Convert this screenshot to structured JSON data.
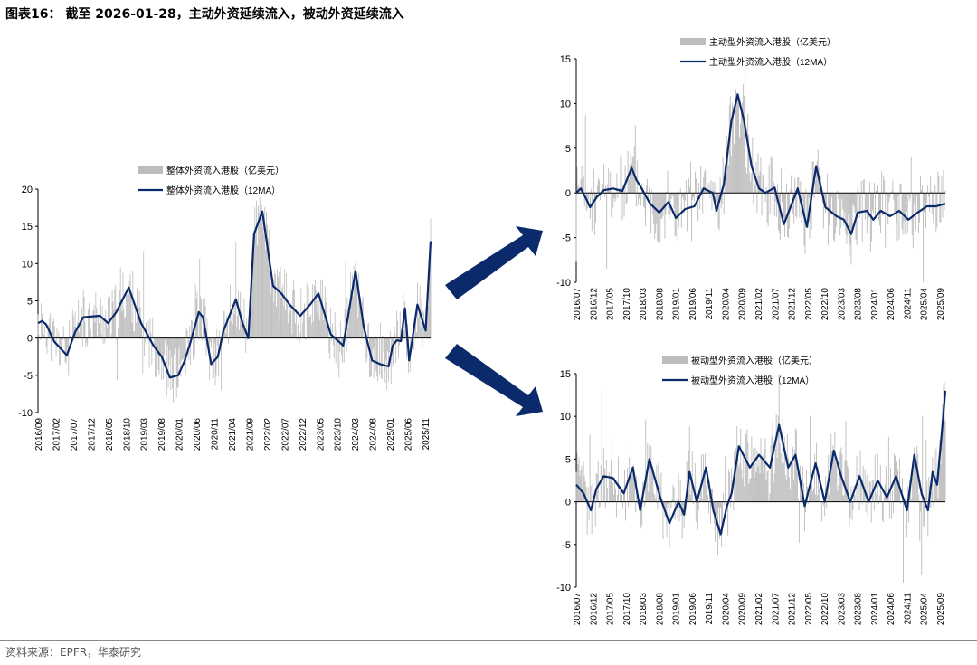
{
  "page": {
    "title": "图表16： 截至 2026-01-28，主动外资延续流入，被动外资延续流入",
    "source": "资料来源：EPFR，华泰研究"
  },
  "colors": {
    "bar": "#bdbdbd",
    "line": "#0b2a6b",
    "arrow": "#0b2a6b",
    "axis": "#000000"
  },
  "chart_data": [
    {
      "id": "overall",
      "type": "bar",
      "series": [
        {
          "name": "整体外资流入港股（亿美元）",
          "kind": "bar"
        },
        {
          "name": "整体外资流入港股（12MA）",
          "kind": "line",
          "x": [
            0,
            5,
            10,
            20,
            35,
            45,
            55,
            75,
            85,
            95,
            110,
            125,
            140,
            150,
            160,
            170,
            178,
            185,
            195,
            200,
            210,
            218,
            225,
            240,
            248,
            255,
            262,
            272,
            285,
            295,
            305,
            318,
            330,
            340,
            355,
            370,
            385,
            395,
            405,
            415,
            425,
            430,
            435,
            440,
            445,
            450,
            460,
            470,
            476
          ],
          "values": [
            2.0,
            2.3,
            1.8,
            -0.5,
            -2.3,
            0.8,
            2.8,
            3.0,
            2.0,
            3.5,
            6.8,
            2.0,
            -1.0,
            -2.5,
            -5.3,
            -5.0,
            -3.0,
            -0.5,
            3.5,
            2.8,
            -3.5,
            -2.5,
            1.0,
            5.2,
            2.0,
            0.0,
            14.0,
            17.0,
            7.0,
            6.0,
            4.5,
            3.0,
            4.5,
            6.0,
            0.5,
            -1.0,
            9.0,
            1.5,
            -3.0,
            -3.5,
            -3.8,
            -1.0,
            -0.3,
            -0.4,
            4.0,
            -3.0,
            4.5,
            1.0,
            13.0
          ]
        }
      ],
      "xlabels": [
        "2016/09",
        "2017/02",
        "2017/07",
        "2017/12",
        "2018/05",
        "2018/10",
        "2019/03",
        "2019/08",
        "2020/01",
        "2020/06",
        "2020/11",
        "2021/04",
        "2021/09",
        "2022/02",
        "2022/07",
        "2022/12",
        "2023/05",
        "2023/10",
        "2024/03",
        "2024/08",
        "2025/01",
        "2025/06",
        "2025/11"
      ],
      "yticks": [
        20,
        15,
        10,
        5,
        0,
        -5,
        -10
      ],
      "ylim": [
        -10,
        20
      ]
    },
    {
      "id": "active",
      "type": "bar",
      "series": [
        {
          "name": "主动型外资流入港股（亿美元）",
          "kind": "bar"
        },
        {
          "name": "主动型外资流入港股（12MA）",
          "kind": "line",
          "x": [
            0,
            5,
            10,
            15,
            22,
            30,
            40,
            50,
            60,
            65,
            72,
            80,
            90,
            100,
            108,
            118,
            128,
            138,
            148,
            152,
            160,
            168,
            175,
            182,
            190,
            198,
            205,
            215,
            225,
            240,
            250,
            260,
            270,
            282,
            290,
            298,
            305,
            315,
            322,
            330,
            340,
            350,
            360,
            370,
            380,
            390,
            400
          ],
          "values": [
            0.0,
            0.5,
            -0.5,
            -1.6,
            -0.5,
            0.3,
            0.5,
            0.2,
            2.8,
            1.5,
            0.3,
            -1.2,
            -2.2,
            -1.0,
            -2.8,
            -1.8,
            -1.5,
            0.5,
            0.0,
            -2.0,
            1.0,
            8.0,
            11.0,
            8.0,
            3.0,
            0.5,
            0.0,
            0.6,
            -3.5,
            0.5,
            -3.8,
            3.0,
            -1.6,
            -2.6,
            -3.0,
            -4.6,
            -2.2,
            -2.0,
            -3.0,
            -2.0,
            -2.6,
            -2.0,
            -3.0,
            -2.2,
            -1.5,
            -1.5,
            -1.2
          ]
        }
      ],
      "xlabels": [
        "2016/07",
        "2016/12",
        "2017/05",
        "2017/10",
        "2018/03",
        "2018/08",
        "2019/01",
        "2019/06",
        "2019/11",
        "2020/04",
        "2020/09",
        "2021/02",
        "2021/07",
        "2021/12",
        "2022/05",
        "2022/10",
        "2023/03",
        "2023/08",
        "2024/01",
        "2024/06",
        "2024/11",
        "2025/04",
        "2025/09"
      ],
      "yticks": [
        15,
        10,
        5,
        0,
        -5,
        -10
      ],
      "ylim": [
        -10,
        15
      ]
    },
    {
      "id": "passive",
      "type": "bar",
      "series": [
        {
          "name": "被动型外资流入港股（亿美元）",
          "kind": "bar"
        },
        {
          "name": "被动型外资流入港股（12MA）",
          "kind": "line",
          "x": [
            0,
            8,
            16,
            22,
            30,
            40,
            52,
            62,
            70,
            80,
            92,
            102,
            112,
            118,
            124,
            132,
            142,
            150,
            158,
            165,
            170,
            178,
            190,
            200,
            212,
            222,
            232,
            240,
            250,
            262,
            272,
            282,
            290,
            300,
            310,
            320,
            330,
            340,
            350,
            362,
            370,
            378,
            385,
            390,
            395,
            400,
            404
          ],
          "values": [
            2.0,
            1.0,
            -1.0,
            1.5,
            3.0,
            2.8,
            1.0,
            4.0,
            -1.0,
            5.0,
            0.5,
            -2.5,
            0.0,
            -1.5,
            3.5,
            0.0,
            4.0,
            -1.0,
            -3.8,
            -0.5,
            1.0,
            6.5,
            4.0,
            5.5,
            4.0,
            9.0,
            4.0,
            5.5,
            -0.5,
            4.5,
            0.0,
            6.0,
            3.0,
            0.0,
            3.0,
            0.0,
            2.5,
            0.5,
            3.0,
            -1.0,
            5.5,
            1.0,
            -1.0,
            3.5,
            2.0,
            8.0,
            13.0
          ]
        }
      ],
      "xlabels": [
        "2016/07",
        "2016/12",
        "2017/05",
        "2017/10",
        "2018/03",
        "2018/08",
        "2019/01",
        "2019/06",
        "2019/11",
        "2020/04",
        "2020/09",
        "2021/02",
        "2021/07",
        "2021/12",
        "2022/05",
        "2022/10",
        "2023/03",
        "2023/08",
        "2024/01",
        "2024/06",
        "2024/11",
        "2025/04",
        "2025/09"
      ],
      "yticks": [
        15,
        10,
        5,
        0,
        -5,
        -10
      ],
      "ylim": [
        -10,
        15
      ]
    }
  ]
}
